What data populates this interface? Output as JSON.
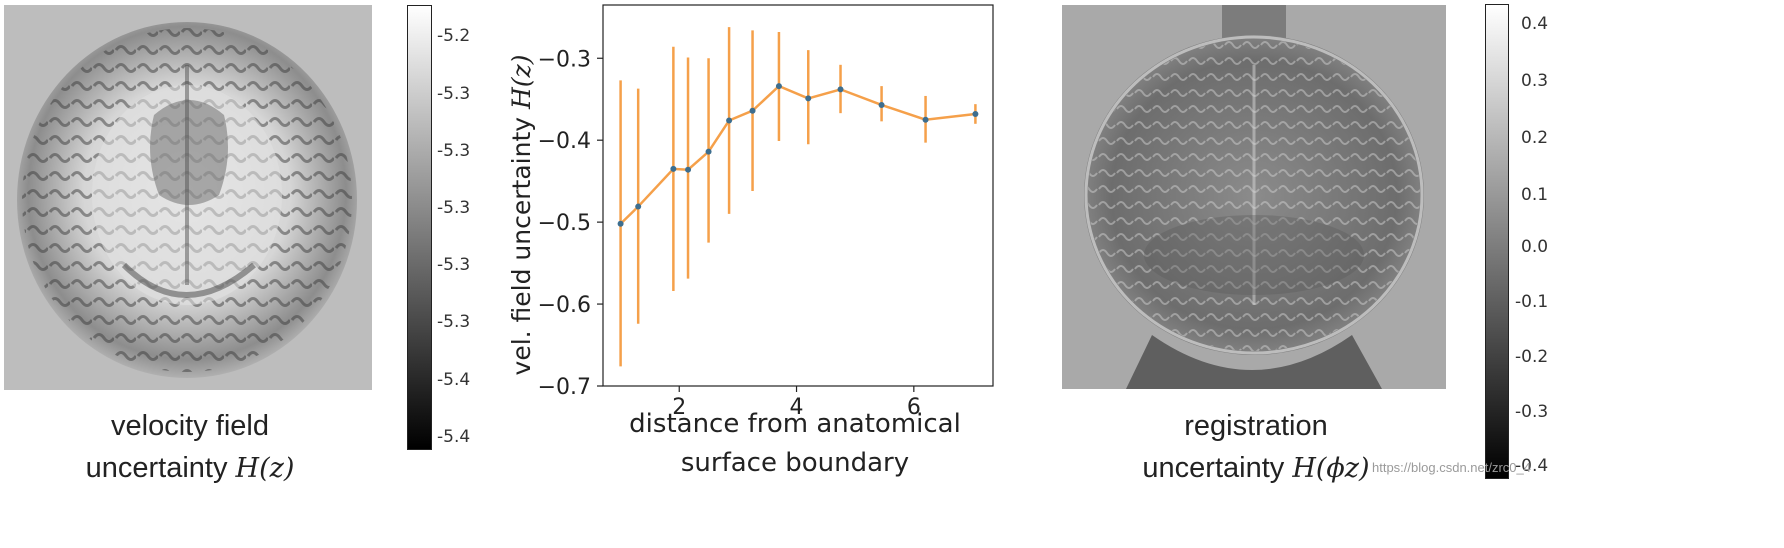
{
  "left_panel": {
    "caption_line1": "velocity field",
    "caption_line2_text": "uncertainty ",
    "caption_line2_math": "H(z)",
    "colorbar_ticks": [
      "-5.2",
      "-5.3",
      "-5.3",
      "-5.3",
      "-5.3",
      "-5.3",
      "-5.4",
      "-5.4"
    ]
  },
  "right_panel": {
    "caption_line1": "registration",
    "caption_line2_text": "uncertainty ",
    "caption_line2_math": "H(ϕz)",
    "colorbar_ticks": [
      "0.4",
      "0.3",
      "0.2",
      "0.1",
      "0.0",
      "-0.1",
      "-0.2",
      "-0.3",
      "-0.4"
    ]
  },
  "watermark": "https://blog.csdn.net/zrc0_4",
  "chart_data": {
    "type": "line",
    "title": "",
    "xlabel_line1": "distance from anatomical",
    "xlabel_line2": "surface boundary",
    "ylabel_text": "vel. field uncertainty ",
    "ylabel_math": "H(z)",
    "xlim": [
      0.7,
      7.35
    ],
    "ylim": [
      -0.7,
      -0.235
    ],
    "xticks": [
      2,
      4,
      6
    ],
    "yticks": [
      -0.3,
      -0.4,
      -0.5,
      -0.6,
      -0.7
    ],
    "grid": false,
    "color": "#f5a04a",
    "point_color": "#3d6e8f",
    "series": [
      {
        "x": [
          1.0,
          1.3,
          1.9,
          2.15,
          2.5,
          2.85,
          3.25,
          3.7,
          4.2,
          4.75,
          5.45,
          6.2,
          7.05
        ],
        "y": [
          -0.502,
          -0.481,
          -0.435,
          -0.436,
          -0.414,
          -0.376,
          -0.364,
          -0.334,
          -0.349,
          -0.338,
          -0.357,
          -0.375,
          -0.368
        ],
        "yerr_low": [
          -0.676,
          -0.624,
          -0.584,
          -0.569,
          -0.525,
          -0.49,
          -0.462,
          -0.401,
          -0.405,
          -0.367,
          -0.377,
          -0.403,
          -0.38
        ],
        "yerr_high": [
          -0.327,
          -0.337,
          -0.286,
          -0.299,
          -0.3,
          -0.262,
          -0.266,
          -0.268,
          -0.29,
          -0.308,
          -0.334,
          -0.346,
          -0.356
        ]
      }
    ]
  }
}
